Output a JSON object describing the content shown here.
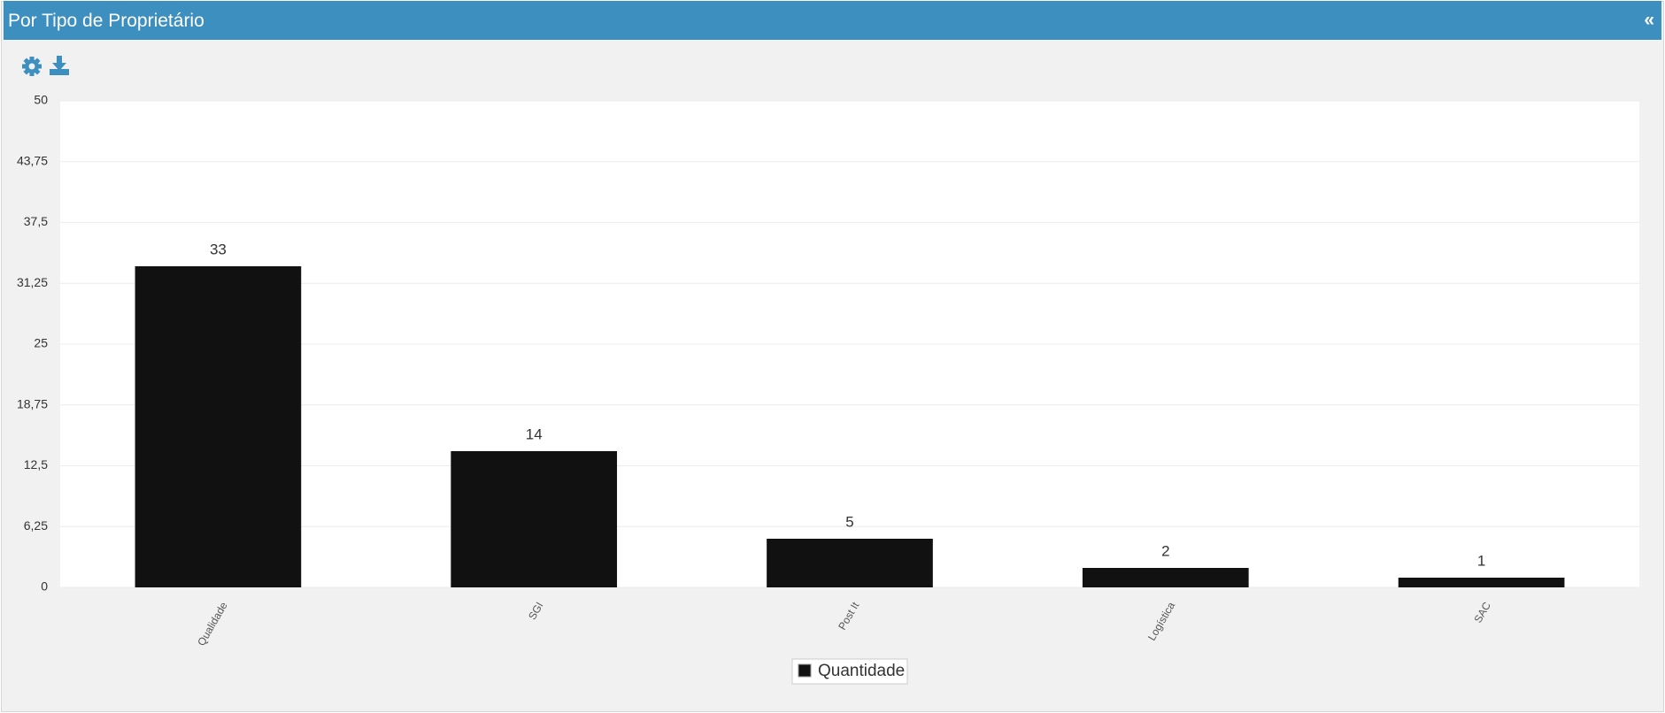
{
  "panel": {
    "collapse_button": "«"
  },
  "chart_data": {
    "type": "bar",
    "title": "Por Tipo de Proprietário",
    "categories": [
      "Qualidade",
      "SGI",
      "Post It",
      "Logística",
      "SAC"
    ],
    "series": [
      {
        "name": "Quantidade",
        "color": "#111111",
        "values": [
          33,
          14,
          5,
          2,
          1
        ]
      }
    ],
    "ylim": [
      0,
      50
    ],
    "yticks": [
      0,
      {
        "value": 6.25,
        "label": "6,25"
      },
      {
        "value": 12.5,
        "label": "12,5"
      },
      {
        "value": 18.75,
        "label": "18,75"
      },
      25,
      {
        "value": 31.25,
        "label": "31,25"
      },
      {
        "value": 37.5,
        "label": "37,5"
      },
      {
        "value": 43.75,
        "label": "43,75"
      },
      50
    ],
    "grid": true
  }
}
